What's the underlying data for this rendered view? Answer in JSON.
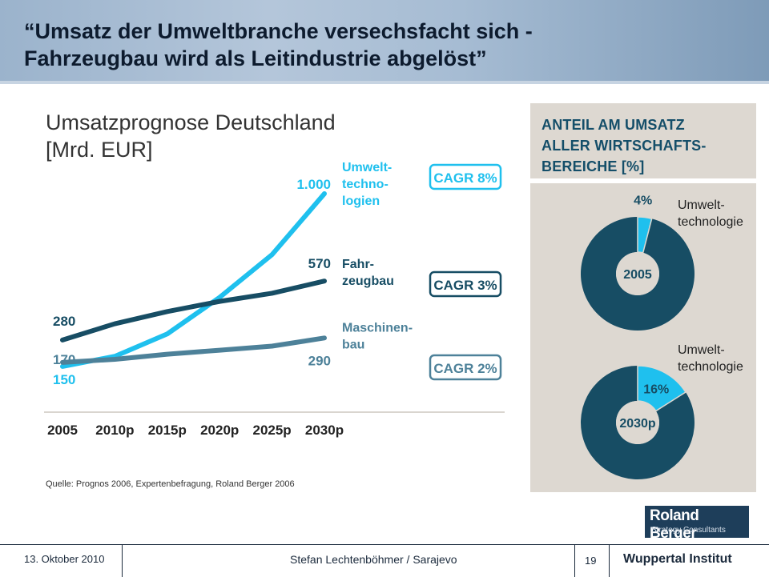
{
  "slide": {
    "title_line1": "“Umsatz der Umweltbranche versechsfacht sich -",
    "title_line2": "Fahrzeugbau wird als Leitindustrie abgelöst”"
  },
  "chart_data": [
    {
      "type": "line",
      "title": "Umsatzprognose Deutschland",
      "subtitle": "[Mrd. EUR]",
      "categories": [
        "2005",
        "2010p",
        "2015p",
        "2020p",
        "2025p",
        "2030p"
      ],
      "ylim": [
        0,
        1100
      ],
      "series": [
        {
          "name": "Umwelt-technologien",
          "label_lines": [
            "Umwelt-",
            "techno-",
            "logien"
          ],
          "color": "#1fc0ee",
          "values": [
            150,
            200,
            310,
            490,
            700,
            1000
          ],
          "start_label": "150",
          "end_label": "1.000",
          "cagr": "CAGR 8%"
        },
        {
          "name": "Fahrzeugbau",
          "label_lines": [
            "Fahr-",
            "zeugbau"
          ],
          "color": "#174d64",
          "values": [
            280,
            360,
            420,
            470,
            510,
            570
          ],
          "start_label": "280",
          "end_label": "570",
          "cagr": "CAGR 3%"
        },
        {
          "name": "Maschinenbau",
          "label_lines": [
            "Maschinen-",
            "bau"
          ],
          "color": "#4d8199",
          "values": [
            170,
            185,
            210,
            230,
            250,
            290
          ],
          "start_label": "170",
          "end_label": "290",
          "cagr": "CAGR 2%"
        }
      ],
      "source": "Quelle: Prognos 2006, Expertenbefragung, Roland Berger 2006"
    },
    {
      "type": "pie",
      "title_lines": [
        "ANTEIL AM UMSATZ",
        "ALLER WIRTSCHAFTS-",
        "BEREICHE [%]"
      ],
      "charts": [
        {
          "year": "2005",
          "highlight_percent": 4,
          "highlight_label": "4%",
          "callout_lines": [
            "Umwelt-",
            "technologie"
          ]
        },
        {
          "year": "2030p",
          "highlight_percent": 16,
          "highlight_label": "16%",
          "callout_lines": [
            "Umwelt-",
            "technologie"
          ]
        }
      ],
      "colors": {
        "highlight": "#1fc0ee",
        "rest": "#174d64",
        "hole": "#ddd8d1",
        "text_dark": "#174d64"
      }
    }
  ],
  "logo": {
    "main": "Roland Berger",
    "sub": "Strategy Consultants"
  },
  "footer": {
    "date": "13. Oktober 2010",
    "author": "Stefan Lechtenböhmer / Sarajevo",
    "page": "19",
    "institute": "Wuppertal Institut"
  }
}
